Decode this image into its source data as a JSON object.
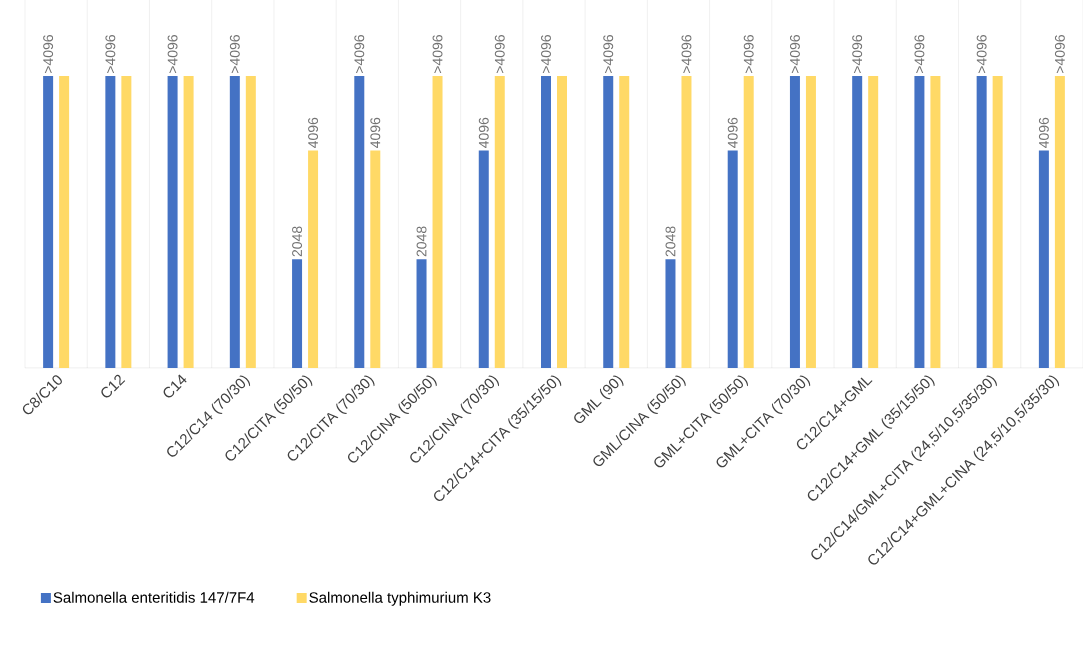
{
  "chart_data": {
    "type": "bar",
    "categories": [
      "C8/C10",
      "C12",
      "C14",
      "C12/C14 (70/30)",
      "C12/CITA (50/50)",
      "C12/CITA (70/30)",
      "C12/CINA (50/50)",
      "C12/CINA (70/30)",
      "C12/C14+CITA (35/15/50)",
      "GML (90)",
      "GML/CINA (50/50)",
      "GML+CITA (50/50)",
      "GML+CITA (70/30)",
      "C12/C14+GML",
      "C12/C14+GML (35/15/50)",
      "C12/C14/GML+CITA (24,5/10,5/35/30)",
      "C12/C14+GML+CINA (24,5/10,5/35/30)"
    ],
    "series": [
      {
        "name": "Salmonella enteritidis 147/7F4",
        "color": "#4472c4",
        "values": [
          5500,
          5500,
          5500,
          5500,
          2048,
          5500,
          2048,
          4096,
          5500,
          5500,
          2048,
          4096,
          5500,
          5500,
          5500,
          5500,
          4096
        ],
        "value_labels": [
          ">4096",
          ">4096",
          ">4096",
          ">4096",
          "2048",
          ">4096",
          "2048",
          "4096",
          ">4096",
          ">4096",
          "2048",
          "4096",
          ">4096",
          ">4096",
          ">4096",
          ">4096",
          "4096"
        ]
      },
      {
        "name": "Salmonella typhimurium K3",
        "color": "#ffd966",
        "values": [
          5500,
          5500,
          5500,
          5500,
          4096,
          4096,
          5500,
          5500,
          5500,
          5500,
          5500,
          5500,
          5500,
          5500,
          5500,
          5500,
          5500
        ],
        "value_labels": [
          null,
          null,
          null,
          null,
          "4096",
          "4096",
          ">4096",
          ">4096",
          null,
          null,
          ">4096",
          ">4096",
          null,
          null,
          null,
          null,
          ">4096"
        ]
      }
    ],
    "grid": "x",
    "legend": "bottom left"
  }
}
